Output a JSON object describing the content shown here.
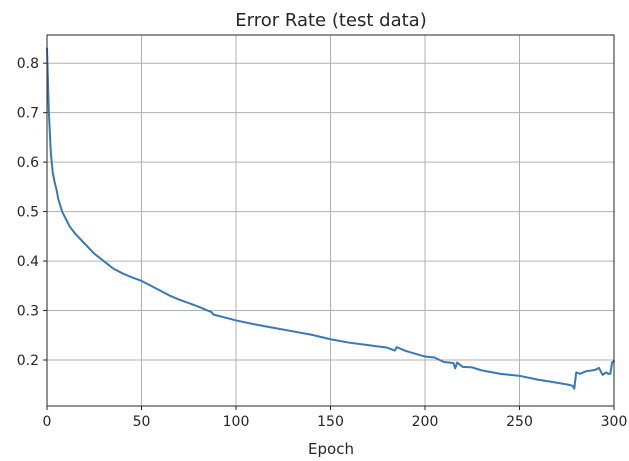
{
  "chart_data": {
    "type": "line",
    "title": "Error Rate (test data)",
    "xlabel": "Epoch",
    "ylabel": "",
    "xlim": [
      0,
      300
    ],
    "ylim": [
      0.107,
      0.857
    ],
    "xticks": [
      0,
      50,
      100,
      150,
      200,
      250,
      300
    ],
    "yticks": [
      0.2,
      0.3,
      0.4,
      0.5,
      0.6,
      0.7,
      0.8
    ],
    "xtick_labels": [
      "0",
      "50",
      "100",
      "150",
      "200",
      "250",
      "300"
    ],
    "ytick_labels": [
      "0.2",
      "0.3",
      "0.4",
      "0.5",
      "0.6",
      "0.7",
      "0.8"
    ],
    "grid": true,
    "series": [
      {
        "color": "#3c78b0",
        "x": [
          0,
          1,
          2,
          3,
          4,
          5,
          6,
          8,
          10,
          12,
          15,
          20,
          25,
          30,
          35,
          40,
          45,
          50,
          55,
          60,
          65,
          70,
          75,
          80,
          85,
          87,
          88,
          90,
          95,
          100,
          110,
          120,
          130,
          140,
          150,
          160,
          170,
          180,
          184,
          185,
          190,
          200,
          205,
          210,
          215,
          216,
          217,
          220,
          225,
          230,
          240,
          250,
          260,
          270,
          276,
          278,
          279,
          280,
          282,
          285,
          290,
          292,
          294,
          296,
          297,
          298,
          299,
          300
        ],
        "y": [
          0.83,
          0.7,
          0.62,
          0.58,
          0.56,
          0.545,
          0.525,
          0.5,
          0.485,
          0.47,
          0.455,
          0.435,
          0.415,
          0.4,
          0.385,
          0.375,
          0.367,
          0.36,
          0.35,
          0.34,
          0.33,
          0.322,
          0.315,
          0.308,
          0.3,
          0.297,
          0.292,
          0.29,
          0.285,
          0.28,
          0.272,
          0.265,
          0.258,
          0.251,
          0.242,
          0.235,
          0.23,
          0.225,
          0.219,
          0.226,
          0.218,
          0.207,
          0.205,
          0.196,
          0.194,
          0.183,
          0.195,
          0.186,
          0.185,
          0.179,
          0.172,
          0.168,
          0.16,
          0.154,
          0.15,
          0.148,
          0.142,
          0.175,
          0.172,
          0.177,
          0.18,
          0.184,
          0.17,
          0.175,
          0.172,
          0.172,
          0.195,
          0.198
        ]
      }
    ]
  }
}
